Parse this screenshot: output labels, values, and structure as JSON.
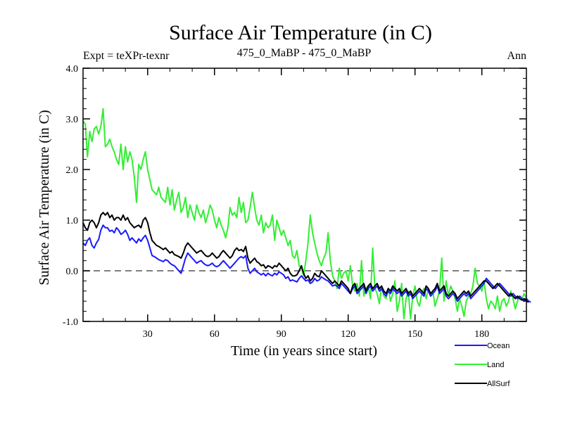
{
  "header": {
    "title": "Surface Air Temperature (in C)",
    "expt": "Expt = teXPr-texnr",
    "subtitle": "475_0_MaBP - 475_0_MaBP",
    "period": "Ann"
  },
  "chart_data": {
    "type": "line",
    "title": "Surface Air Temperature (in C)",
    "xlabel": "Time (in years since start)",
    "ylabel": "Surface Air Temperature (in C)",
    "xlim": [
      1,
      200
    ],
    "ylim": [
      -1.0,
      4.0
    ],
    "x_ticks": [
      30,
      60,
      90,
      120,
      150,
      180
    ],
    "x_ticklabels": [
      "30",
      "60",
      "90",
      "120",
      "150",
      "180"
    ],
    "y_ticks": [
      -1.0,
      0.0,
      1.0,
      2.0,
      3.0,
      4.0
    ],
    "y_ticklabels": [
      "-1.0",
      "0.0",
      "1.0",
      "2.0",
      "3.0",
      "4.0"
    ],
    "reference_line": 0.0,
    "legend_position": "lower-right, outside plot",
    "x_start": 1,
    "series": [
      {
        "name": "Ocean",
        "color": "#1a1aff",
        "values": [
          0.55,
          0.5,
          0.6,
          0.65,
          0.5,
          0.45,
          0.55,
          0.62,
          0.8,
          0.9,
          0.85,
          0.85,
          0.78,
          0.8,
          0.75,
          0.85,
          0.8,
          0.72,
          0.75,
          0.8,
          0.72,
          0.6,
          0.65,
          0.6,
          0.55,
          0.63,
          0.58,
          0.65,
          0.7,
          0.6,
          0.45,
          0.3,
          0.28,
          0.25,
          0.22,
          0.2,
          0.18,
          0.22,
          0.2,
          0.15,
          0.12,
          0.1,
          0.05,
          0.0,
          -0.05,
          0.1,
          0.25,
          0.35,
          0.3,
          0.25,
          0.2,
          0.15,
          0.18,
          0.2,
          0.15,
          0.12,
          0.1,
          0.12,
          0.15,
          0.1,
          0.08,
          0.1,
          0.15,
          0.2,
          0.15,
          0.1,
          0.05,
          0.1,
          0.15,
          0.2,
          0.25,
          0.28,
          0.25,
          0.3,
          0.05,
          -0.05,
          0.0,
          0.05,
          -0.02,
          -0.05,
          -0.08,
          -0.05,
          -0.1,
          -0.05,
          -0.08,
          -0.1,
          -0.05,
          -0.08,
          -0.02,
          -0.05,
          -0.08,
          -0.15,
          -0.12,
          -0.2,
          -0.18,
          -0.2,
          -0.22,
          -0.15,
          -0.1,
          -0.15,
          -0.2,
          -0.18,
          -0.25,
          -0.22,
          -0.15,
          -0.2,
          -0.18,
          -0.12,
          -0.15,
          -0.18,
          -0.2,
          -0.25,
          -0.3,
          -0.28,
          -0.3,
          -0.35,
          -0.25,
          -0.3,
          -0.35,
          -0.4,
          -0.45,
          -0.35,
          -0.3,
          -0.45,
          -0.4,
          -0.35,
          -0.3,
          -0.45,
          -0.35,
          -0.3,
          -0.4,
          -0.35,
          -0.3,
          -0.4,
          -0.35,
          -0.45,
          -0.5,
          -0.4,
          -0.45,
          -0.35,
          -0.4,
          -0.45,
          -0.4,
          -0.5,
          -0.45,
          -0.4,
          -0.5,
          -0.45,
          -0.55,
          -0.5,
          -0.45,
          -0.4,
          -0.45,
          -0.5,
          -0.35,
          -0.4,
          -0.5,
          -0.45,
          -0.4,
          -0.3,
          -0.45,
          -0.4,
          -0.35,
          -0.5,
          -0.55,
          -0.5,
          -0.45,
          -0.5,
          -0.6,
          -0.55,
          -0.5,
          -0.45,
          -0.5,
          -0.45,
          -0.55,
          -0.5,
          -0.45,
          -0.4,
          -0.35,
          -0.3,
          -0.25,
          -0.15,
          -0.2,
          -0.25,
          -0.3,
          -0.35,
          -0.3,
          -0.25,
          -0.3,
          -0.35,
          -0.4,
          -0.45,
          -0.5,
          -0.45,
          -0.5,
          -0.55,
          -0.5,
          -0.55,
          -0.6,
          -0.55,
          -0.6,
          -0.62
        ]
      },
      {
        "name": "Land",
        "color": "#33ee33",
        "values": [
          2.95,
          2.9,
          2.25,
          2.75,
          2.55,
          2.8,
          2.85,
          2.7,
          2.85,
          3.2,
          2.45,
          2.5,
          2.6,
          2.45,
          2.35,
          2.2,
          2.1,
          2.5,
          2.0,
          2.45,
          2.15,
          2.35,
          2.2,
          1.85,
          1.35,
          2.1,
          2.0,
          2.2,
          2.35,
          2.0,
          1.8,
          1.6,
          1.55,
          1.5,
          1.65,
          1.45,
          1.4,
          1.35,
          1.65,
          1.3,
          1.6,
          1.2,
          1.4,
          1.55,
          1.15,
          1.25,
          1.45,
          1.05,
          1.3,
          1.15,
          1.0,
          1.3,
          1.15,
          1.05,
          1.2,
          0.95,
          1.1,
          1.3,
          1.2,
          1.0,
          0.85,
          1.05,
          0.9,
          0.8,
          0.65,
          0.85,
          1.25,
          1.1,
          1.15,
          1.05,
          1.45,
          1.15,
          1.35,
          0.95,
          1.0,
          1.25,
          1.55,
          1.25,
          1.0,
          0.9,
          1.1,
          0.75,
          0.95,
          0.85,
          0.9,
          1.1,
          0.6,
          1.0,
          0.85,
          0.7,
          0.8,
          0.65,
          0.5,
          0.6,
          0.3,
          0.25,
          0.4,
          0.1,
          0.05,
          -0.1,
          0.2,
          0.55,
          1.1,
          0.75,
          0.55,
          0.35,
          0.2,
          0.1,
          0.25,
          0.35,
          0.75,
          0.2,
          -0.1,
          -0.2,
          -0.35,
          0.05,
          -0.15,
          -0.05,
          0.0,
          -0.2,
          0.1,
          -0.3,
          -0.4,
          -0.25,
          -0.5,
          0.2,
          -0.5,
          -0.35,
          -0.3,
          -0.55,
          0.45,
          -0.35,
          -0.45,
          -0.65,
          -0.3,
          -0.5,
          -0.55,
          -0.35,
          -0.6,
          -0.45,
          -0.2,
          -0.8,
          -0.6,
          -0.25,
          -0.95,
          -0.55,
          -0.4,
          -0.95,
          -0.5,
          -0.3,
          -0.6,
          -0.7,
          -0.45,
          -0.35,
          -0.55,
          -0.35,
          -0.5,
          -0.4,
          -0.7,
          -0.55,
          -0.4,
          0.25,
          -0.6,
          -0.2,
          -0.5,
          -0.3,
          -0.4,
          -0.55,
          -0.8,
          -0.55,
          -0.7,
          -0.9,
          -0.6,
          -0.5,
          -0.45,
          -0.3,
          0.05,
          -0.25,
          -0.3,
          -0.4,
          -0.2,
          -0.55,
          -0.75,
          -0.6,
          -0.65,
          -0.75,
          -0.5,
          -0.8,
          -0.6,
          -0.55,
          -0.7,
          -0.6,
          -0.4,
          -0.55,
          -0.75,
          -0.6,
          -0.5,
          -0.55,
          -0.45,
          -0.55
        ]
      },
      {
        "name": "AllSurf",
        "color": "#000000",
        "values": [
          0.95,
          0.85,
          0.8,
          0.95,
          1.0,
          0.95,
          0.85,
          0.95,
          1.1,
          1.15,
          1.1,
          1.15,
          1.05,
          1.1,
          1.0,
          1.05,
          1.05,
          1.0,
          1.1,
          1.0,
          1.05,
          0.95,
          0.9,
          0.85,
          0.88,
          0.9,
          0.85,
          1.0,
          1.05,
          0.95,
          0.75,
          0.6,
          0.55,
          0.5,
          0.48,
          0.45,
          0.42,
          0.45,
          0.4,
          0.35,
          0.38,
          0.32,
          0.3,
          0.28,
          0.25,
          0.35,
          0.48,
          0.55,
          0.5,
          0.45,
          0.4,
          0.35,
          0.38,
          0.4,
          0.35,
          0.3,
          0.28,
          0.3,
          0.35,
          0.3,
          0.25,
          0.28,
          0.35,
          0.4,
          0.35,
          0.3,
          0.25,
          0.3,
          0.4,
          0.45,
          0.4,
          0.42,
          0.38,
          0.48,
          0.25,
          0.15,
          0.2,
          0.25,
          0.18,
          0.15,
          0.1,
          0.12,
          0.05,
          0.1,
          0.08,
          0.05,
          0.1,
          0.08,
          0.15,
          0.1,
          0.05,
          0.0,
          0.05,
          -0.05,
          -0.1,
          -0.1,
          -0.08,
          0.0,
          0.1,
          -0.05,
          -0.15,
          -0.1,
          -0.2,
          -0.15,
          -0.05,
          -0.1,
          -0.12,
          0.0,
          -0.05,
          -0.1,
          -0.15,
          -0.2,
          -0.25,
          -0.2,
          -0.25,
          -0.3,
          -0.2,
          -0.25,
          -0.3,
          -0.35,
          -0.45,
          -0.3,
          -0.25,
          -0.4,
          -0.35,
          -0.3,
          -0.25,
          -0.4,
          -0.3,
          -0.25,
          -0.35,
          -0.3,
          -0.25,
          -0.35,
          -0.3,
          -0.4,
          -0.45,
          -0.35,
          -0.4,
          -0.3,
          -0.35,
          -0.4,
          -0.35,
          -0.45,
          -0.4,
          -0.35,
          -0.45,
          -0.4,
          -0.5,
          -0.45,
          -0.4,
          -0.35,
          -0.4,
          -0.45,
          -0.3,
          -0.35,
          -0.45,
          -0.4,
          -0.35,
          -0.25,
          -0.4,
          -0.35,
          -0.3,
          -0.45,
          -0.5,
          -0.45,
          -0.4,
          -0.45,
          -0.55,
          -0.5,
          -0.45,
          -0.4,
          -0.45,
          -0.4,
          -0.5,
          -0.45,
          -0.4,
          -0.35,
          -0.3,
          -0.25,
          -0.2,
          -0.2,
          -0.25,
          -0.3,
          -0.35,
          -0.3,
          -0.25,
          -0.3,
          -0.35,
          -0.4,
          -0.45,
          -0.5,
          -0.45,
          -0.5,
          -0.55,
          -0.5,
          -0.55,
          -0.58,
          -0.55,
          -0.6,
          -0.62
        ]
      }
    ]
  }
}
